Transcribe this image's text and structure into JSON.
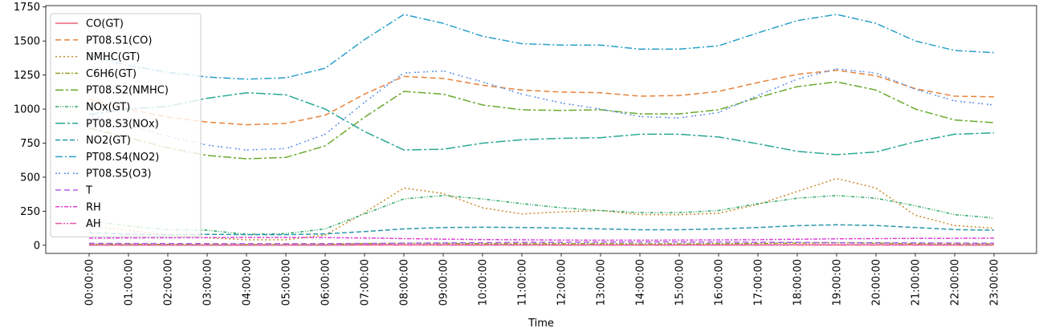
{
  "chart_data": {
    "type": "line",
    "xlabel": "Time",
    "ylabel": "",
    "ylim": [
      -60,
      1760
    ],
    "yticks": [
      0,
      250,
      500,
      750,
      1000,
      1250,
      1500,
      1750
    ],
    "categories": [
      "00:00:00",
      "01:00:00",
      "02:00:00",
      "03:00:00",
      "04:00:00",
      "05:00:00",
      "06:00:00",
      "07:00:00",
      "08:00:00",
      "09:00:00",
      "10:00:00",
      "11:00:00",
      "12:00:00",
      "13:00:00",
      "14:00:00",
      "15:00:00",
      "16:00:00",
      "17:00:00",
      "18:00:00",
      "19:00:00",
      "20:00:00",
      "21:00:00",
      "22:00:00",
      "23:00:00"
    ],
    "legend_position": "upper-left",
    "grid": false,
    "series": [
      {
        "name": "CO(GT)",
        "color": "#e8647a",
        "dash": "",
        "values": [
          2.1,
          1.7,
          1.3,
          1.1,
          0.9,
          1.0,
          1.4,
          2.5,
          3.3,
          3.1,
          2.6,
          2.4,
          2.3,
          2.3,
          2.3,
          2.3,
          2.4,
          2.7,
          3.3,
          3.6,
          3.3,
          2.6,
          2.0,
          1.8
        ]
      },
      {
        "name": "PT08.S1(CO)",
        "color": "#e8823a",
        "dash": "7,4",
        "values": [
          1070,
          1000,
          940,
          905,
          885,
          895,
          955,
          1110,
          1240,
          1225,
          1175,
          1140,
          1125,
          1120,
          1095,
          1100,
          1130,
          1195,
          1255,
          1285,
          1245,
          1150,
          1095,
          1090
        ]
      },
      {
        "name": "NMHC(GT)",
        "color": "#c88a2a",
        "dash": "2,3",
        "values": [
          140,
          110,
          75,
          55,
          40,
          40,
          75,
          240,
          420,
          380,
          275,
          230,
          245,
          255,
          225,
          225,
          235,
          300,
          395,
          490,
          420,
          220,
          145,
          125
        ]
      },
      {
        "name": "C6H6(GT)",
        "color": "#9aa02a",
        "dash": "6,2,2,2",
        "values": [
          9.5,
          7.5,
          6.0,
          5.0,
          4.5,
          4.8,
          7.0,
          12.0,
          14.5,
          13.5,
          12.0,
          11.5,
          11.0,
          11.0,
          10.5,
          10.5,
          11.5,
          13.0,
          16.0,
          17.5,
          15.0,
          12.0,
          10.5,
          10.0
        ]
      },
      {
        "name": "PT08.S2(NMHC)",
        "color": "#6aaa2e",
        "dash": "10,3,3,3",
        "values": [
          860,
          790,
          715,
          660,
          635,
          645,
          730,
          940,
          1130,
          1110,
          1030,
          995,
          990,
          995,
          965,
          965,
          995,
          1085,
          1165,
          1200,
          1140,
          1000,
          920,
          900
        ]
      },
      {
        "name": "NOx(GT)",
        "color": "#2ea866",
        "dash": "4,2,1,2,1,2",
        "values": [
          180,
          140,
          115,
          110,
          80,
          85,
          120,
          230,
          340,
          365,
          340,
          305,
          275,
          255,
          240,
          240,
          255,
          305,
          345,
          365,
          345,
          290,
          225,
          200
        ]
      },
      {
        "name": "PT08.S3(NOx)",
        "color": "#2aa894",
        "dash": "12,3,3,3",
        "values": [
          960,
          1000,
          1020,
          1080,
          1120,
          1105,
          1000,
          835,
          700,
          705,
          750,
          775,
          785,
          790,
          815,
          815,
          795,
          745,
          690,
          665,
          685,
          760,
          815,
          825
        ]
      },
      {
        "name": "NO2(GT)",
        "color": "#2a98a8",
        "dash": "6,3",
        "values": [
          92,
          82,
          78,
          80,
          78,
          78,
          84,
          100,
          120,
          130,
          132,
          130,
          126,
          120,
          114,
          114,
          120,
          130,
          144,
          150,
          145,
          130,
          115,
          110
        ]
      },
      {
        "name": "PT08.S4(NO2)",
        "color": "#2aa0c8",
        "dash": "9,3,2,3",
        "values": [
          1395,
          1320,
          1270,
          1235,
          1220,
          1230,
          1300,
          1510,
          1695,
          1630,
          1535,
          1480,
          1470,
          1470,
          1440,
          1440,
          1465,
          1560,
          1650,
          1695,
          1630,
          1500,
          1430,
          1415
        ]
      },
      {
        "name": "PT08.S5(O3)",
        "color": "#5a8ee8",
        "dash": "2,2,2,5",
        "values": [
          960,
          880,
          800,
          735,
          700,
          710,
          815,
          1050,
          1265,
          1280,
          1200,
          1110,
          1045,
          1000,
          945,
          935,
          975,
          1100,
          1220,
          1295,
          1265,
          1145,
          1060,
          1030
        ]
      },
      {
        "name": "T",
        "color": "#b060e8",
        "dash": "7,4",
        "values": [
          14,
          13,
          12.5,
          12,
          11.5,
          11.5,
          12,
          13,
          15,
          17,
          19,
          21,
          22,
          23,
          23.5,
          23.5,
          23,
          22,
          20.5,
          19,
          18,
          17,
          16,
          15
        ]
      },
      {
        "name": "RH",
        "color": "#e040d8",
        "dash": "5,2,2,2",
        "values": [
          52,
          54,
          55,
          56,
          57,
          57,
          56,
          53,
          49,
          45,
          42,
          40,
          38,
          37,
          37,
          38,
          39,
          41,
          44,
          47,
          49,
          50,
          51,
          52
        ]
      },
      {
        "name": "AH",
        "color": "#e85aa8",
        "dash": "8,2,2,2,2,2",
        "values": [
          1.0,
          1.0,
          1.0,
          1.0,
          1.0,
          1.0,
          1.0,
          1.0,
          1.0,
          1.0,
          1.0,
          1.0,
          1.0,
          1.0,
          1.0,
          1.0,
          1.0,
          1.0,
          1.0,
          1.0,
          1.0,
          1.0,
          1.0,
          1.0
        ]
      }
    ]
  }
}
